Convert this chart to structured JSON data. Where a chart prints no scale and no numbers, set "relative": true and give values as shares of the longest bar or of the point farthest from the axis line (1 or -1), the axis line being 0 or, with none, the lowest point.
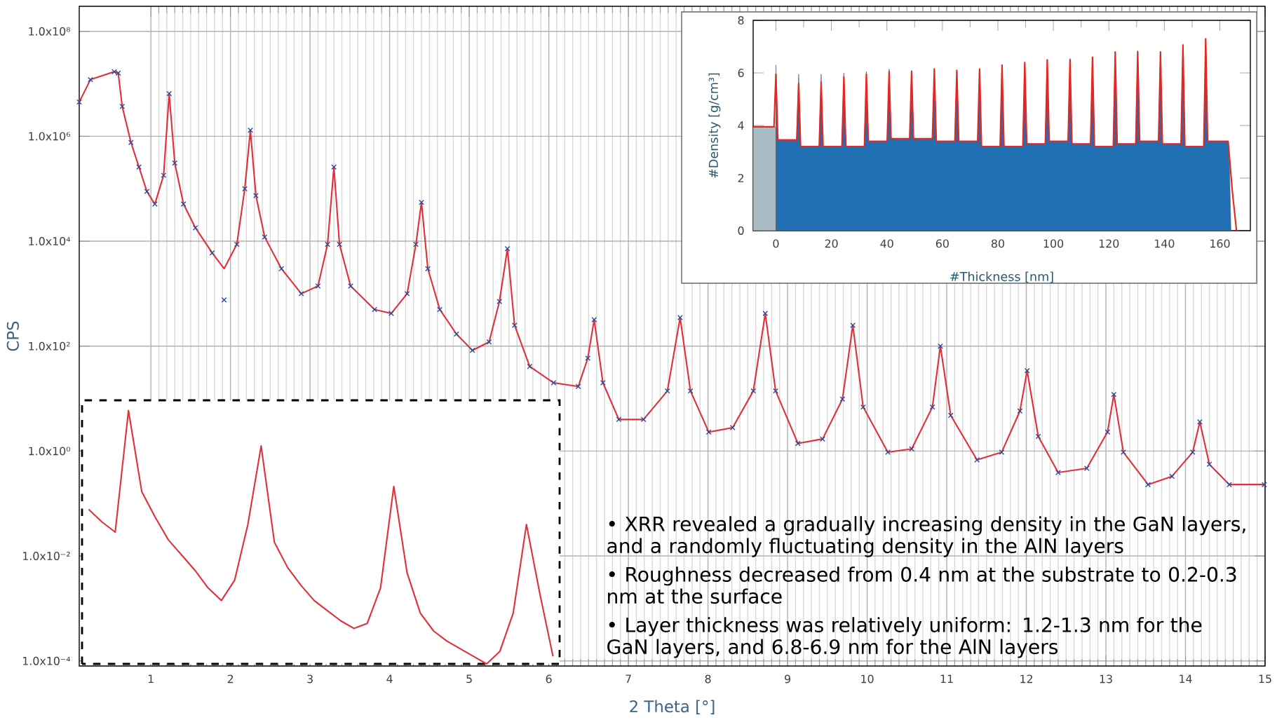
{
  "chart_data": [
    {
      "type": "line",
      "xlabel": "2 Theta [°]",
      "ylabel": "CPS",
      "log": true,
      "grid": true,
      "xlim": [
        0.1,
        15
      ],
      "ylim": [
        8e-05,
        300000000.0
      ],
      "xticks": [
        1,
        2,
        3,
        4,
        5,
        6,
        7,
        8,
        9,
        10,
        11,
        12,
        13,
        14,
        15
      ],
      "yticks": [
        {
          "value": 0.0001,
          "label": "1.0x10⁻⁴"
        },
        {
          "value": 0.01,
          "label": "1.0x10⁻²"
        },
        {
          "value": 1,
          "label": "1.0x10⁰"
        },
        {
          "value": 100,
          "label": "1.0x10²"
        },
        {
          "value": 10000.0,
          "label": "1.0x10⁴"
        },
        {
          "value": 1000000.0,
          "label": "1.0x10⁶"
        },
        {
          "value": 100000000.0,
          "label": "1.0x10⁸"
        }
      ],
      "annotations": [
        "• XRR revealed a gradually increasing density in the GaN layers, and a randomly fluctuating density in the AlN layers",
        "• Roughness decreased from 0.4 nm at the substrate to 0.2-0.3 nm at the surface",
        "• Layer thickness was relatively uniform: 1.2-1.3 nm for the GaN layers, and 6.8-6.9 nm for the AlN layers"
      ],
      "series": [
        {
          "type": "scatter",
          "marker": "cross",
          "color": "#2b4c9b",
          "x": [
            0.1,
            0.24,
            0.54,
            0.59,
            0.64,
            0.75,
            0.85,
            0.95,
            1.05,
            1.16,
            1.23,
            1.3,
            1.41,
            1.56,
            1.77,
            1.92,
            2.08,
            2.18,
            2.25,
            2.32,
            2.43,
            2.64,
            2.89,
            3.1,
            3.22,
            3.3,
            3.37,
            3.51,
            3.81,
            4.02,
            4.22,
            4.33,
            4.4,
            4.48,
            4.63,
            4.84,
            5.04,
            5.25,
            5.38,
            5.48,
            5.57,
            5.76,
            6.06,
            6.37,
            6.49,
            6.57,
            6.68,
            6.88,
            7.19,
            7.49,
            7.65,
            7.78,
            8.01,
            8.31,
            8.57,
            8.72,
            8.85,
            9.13,
            9.44,
            9.69,
            9.82,
            9.95,
            10.26,
            10.56,
            10.82,
            10.92,
            11.05,
            11.38,
            11.69,
            11.92,
            12.01,
            12.15,
            12.4,
            12.76,
            13.02,
            13.1,
            13.22,
            13.53,
            13.83,
            14.09,
            14.18,
            14.3,
            14.55,
            14.99
          ],
          "values": [
            4500000.0,
            12000000.0,
            17000000.0,
            16000000.0,
            3700000.0,
            760000.0,
            260000.0,
            89000.0,
            51000.0,
            180000.0,
            6500000.0,
            310000.0,
            51000.0,
            18000.0,
            6000.0,
            760,
            8700.0,
            100000.0,
            1300000.0,
            74000.0,
            12000.0,
            3000.0,
            1000.0,
            1400.0,
            8700.0,
            260000.0,
            8700.0,
            1400.0,
            500,
            420,
            1000.0,
            8700.0,
            55000.0,
            3000.0,
            500,
            170,
            83,
            120,
            710,
            7200.0,
            250,
            41,
            20,
            17,
            59,
            320,
            20,
            4.0,
            4.0,
            14,
            350,
            14,
            2.3,
            2.8,
            14,
            420,
            14,
            1.4,
            1.7,
            9.8,
            250,
            6.9,
            0.95,
            1.1,
            6.9,
            100,
            4.8,
            0.68,
            0.95,
            5.8,
            34,
            1.9,
            0.39,
            0.47,
            2.3,
            12,
            0.95,
            0.23,
            0.33,
            0.95,
            3.6,
            0.56,
            0.23,
            0.23
          ]
        },
        {
          "color": "#e0303a",
          "x": [
            0.1,
            0.24,
            0.54,
            0.59,
            0.64,
            0.75,
            0.85,
            0.95,
            1.05,
            1.16,
            1.23,
            1.3,
            1.41,
            1.56,
            1.77,
            1.92,
            2.08,
            2.18,
            2.25,
            2.32,
            2.43,
            2.64,
            2.89,
            3.1,
            3.22,
            3.3,
            3.37,
            3.51,
            3.81,
            4.02,
            4.22,
            4.33,
            4.4,
            4.48,
            4.63,
            4.84,
            5.04,
            5.25,
            5.38,
            5.48,
            5.57,
            5.76,
            6.06,
            6.37,
            6.49,
            6.57,
            6.68,
            6.88,
            7.19,
            7.49,
            7.65,
            7.78,
            8.01,
            8.31,
            8.57,
            8.72,
            8.85,
            9.13,
            9.44,
            9.69,
            9.82,
            9.95,
            10.26,
            10.56,
            10.82,
            10.92,
            11.05,
            11.38,
            11.69,
            11.92,
            12.01,
            12.15,
            12.4,
            12.76,
            13.02,
            13.1,
            13.22,
            13.53,
            13.83,
            14.09,
            14.18,
            14.3,
            14.55,
            14.99
          ],
          "values": [
            4500000.0,
            12000000.0,
            17000000.0,
            16000000.0,
            3700000.0,
            760000.0,
            260000.0,
            89000.0,
            51000.0,
            180000.0,
            6500000.0,
            310000.0,
            51000.0,
            18000.0,
            6000.0,
            3000.0,
            8700.0,
            100000.0,
            1300000.0,
            74000.0,
            12000.0,
            3000.0,
            1000.0,
            1400.0,
            8700.0,
            260000.0,
            8700.0,
            1400.0,
            500,
            420,
            1000.0,
            8700.0,
            55000.0,
            3000.0,
            500,
            170,
            83,
            120,
            710,
            7200.0,
            250,
            41,
            20,
            17,
            59,
            320,
            20,
            4.0,
            4.0,
            14,
            350,
            14,
            2.3,
            2.8,
            14,
            420,
            14,
            1.4,
            1.7,
            9.8,
            250,
            6.9,
            0.95,
            1.1,
            6.9,
            100,
            4.8,
            0.68,
            0.95,
            5.8,
            34,
            1.9,
            0.39,
            0.47,
            2.3,
            12,
            0.95,
            0.23,
            0.33,
            0.95,
            3.6,
            0.56,
            0.23,
            0.23
          ]
        }
      ]
    },
    {
      "type": "area",
      "xlabel": "#Thickness [nm]",
      "ylabel": "#Density [g/cm³]",
      "xlim": [
        -8.2,
        171
      ],
      "ylim": [
        0,
        8
      ],
      "xticks": [
        0,
        20,
        40,
        60,
        80,
        100,
        120,
        140,
        160
      ],
      "yticks": [
        0,
        2,
        4,
        6,
        8
      ],
      "series": [
        {
          "color": "#a9bcc4",
          "x": [
            -8.2,
            0
          ],
          "values": [
            3.95,
            3.95
          ]
        },
        {
          "color": "#1f6fb2",
          "x": [
            0,
            0.7,
            7.5,
            8.2,
            8.9,
            15.6,
            16.3,
            17.0,
            23.8,
            24.5,
            25.2,
            31.9,
            32.6,
            33.3,
            40.1,
            40.8,
            41.5,
            48.2,
            48.9,
            49.6,
            56.4,
            57.1,
            57.8,
            64.5,
            65.2,
            65.9,
            72.7,
            73.4,
            74.1,
            80.8,
            81.5,
            82.2,
            89.0,
            89.7,
            90.4,
            97.1,
            97.8,
            98.5,
            105.3,
            106.0,
            106.7,
            113.4,
            114.1,
            114.8,
            121.6,
            122.3,
            123.0,
            129.7,
            130.4,
            131.1,
            137.9,
            138.6,
            139.3,
            146.0,
            146.7,
            147.4,
            154.2,
            154.9,
            155.6,
            163,
            163.5,
            164
          ],
          "values": [
            6.3,
            3.45,
            3.45,
            5.95,
            3.2,
            3.2,
            5.95,
            3.2,
            3.2,
            6.0,
            3.2,
            3.2,
            6.05,
            3.4,
            3.4,
            6.15,
            3.5,
            3.5,
            6.1,
            3.5,
            3.5,
            6.1,
            3.4,
            3.4,
            6.1,
            3.4,
            3.4,
            6.15,
            3.2,
            3.2,
            6.2,
            3.2,
            3.2,
            6.35,
            3.3,
            3.3,
            6.5,
            3.4,
            3.4,
            6.55,
            3.3,
            3.3,
            6.6,
            3.2,
            3.2,
            6.8,
            3.3,
            3.3,
            6.85,
            3.4,
            3.4,
            6.8,
            3.3,
            3.3,
            7.1,
            3.2,
            3.2,
            7.3,
            3.4,
            3.4,
            2.4,
            0
          ]
        },
        {
          "type": "line",
          "color": "#e8251f",
          "x": [
            -8.2,
            -0.7,
            0,
            0.7,
            7.5,
            8.2,
            8.9,
            15.6,
            16.3,
            17.0,
            23.8,
            24.5,
            25.2,
            31.9,
            32.6,
            33.3,
            40.1,
            40.8,
            41.5,
            48.2,
            48.9,
            49.6,
            56.4,
            57.1,
            57.8,
            64.5,
            65.2,
            65.9,
            72.7,
            73.4,
            74.1,
            80.8,
            81.5,
            82.2,
            89.0,
            89.7,
            90.4,
            97.1,
            97.8,
            98.5,
            105.3,
            106.0,
            106.7,
            113.4,
            114.1,
            114.8,
            121.6,
            122.3,
            123.0,
            129.7,
            130.4,
            131.1,
            137.9,
            138.6,
            139.3,
            146.0,
            146.7,
            147.4,
            154.2,
            154.9,
            155.6,
            163,
            164.5,
            166
          ],
          "values": [
            3.95,
            3.95,
            5.95,
            3.45,
            3.45,
            5.6,
            3.2,
            3.2,
            5.65,
            3.2,
            3.2,
            5.85,
            3.2,
            3.2,
            5.95,
            3.4,
            3.4,
            6.05,
            3.5,
            3.5,
            6.05,
            3.5,
            3.5,
            6.15,
            3.4,
            3.4,
            6.1,
            3.4,
            3.4,
            6.15,
            3.2,
            3.2,
            6.3,
            3.2,
            3.2,
            6.4,
            3.3,
            3.3,
            6.5,
            3.4,
            3.4,
            6.5,
            3.3,
            3.3,
            6.6,
            3.2,
            3.2,
            6.8,
            3.3,
            3.3,
            6.8,
            3.4,
            3.4,
            6.8,
            3.3,
            3.3,
            7.05,
            3.2,
            3.2,
            7.3,
            3.4,
            3.4,
            1.5,
            0
          ]
        }
      ]
    },
    {
      "type": "line",
      "relative": true,
      "categories": [
        null,
        null,
        null,
        null,
        null,
        null,
        null,
        null,
        null,
        null,
        null,
        null,
        null,
        null,
        null,
        null,
        null,
        null,
        null,
        null,
        null,
        null,
        null,
        null,
        null,
        null,
        null,
        null,
        null,
        null,
        null,
        null,
        null,
        null,
        null,
        null
      ],
      "series": [
        {
          "color": "#e0303a",
          "values": [
            0.61,
            0.56,
            0.52,
            1.0,
            0.68,
            0.58,
            0.49,
            0.43,
            0.37,
            0.3,
            0.25,
            0.33,
            0.55,
            0.86,
            0.48,
            0.38,
            0.31,
            0.25,
            0.21,
            0.17,
            0.14,
            0.16,
            0.3,
            0.7,
            0.36,
            0.2,
            0.13,
            0.09,
            0.06,
            0.03,
            0.0,
            0.05,
            0.2,
            0.55,
            0.28,
            0.03
          ]
        }
      ]
    }
  ]
}
